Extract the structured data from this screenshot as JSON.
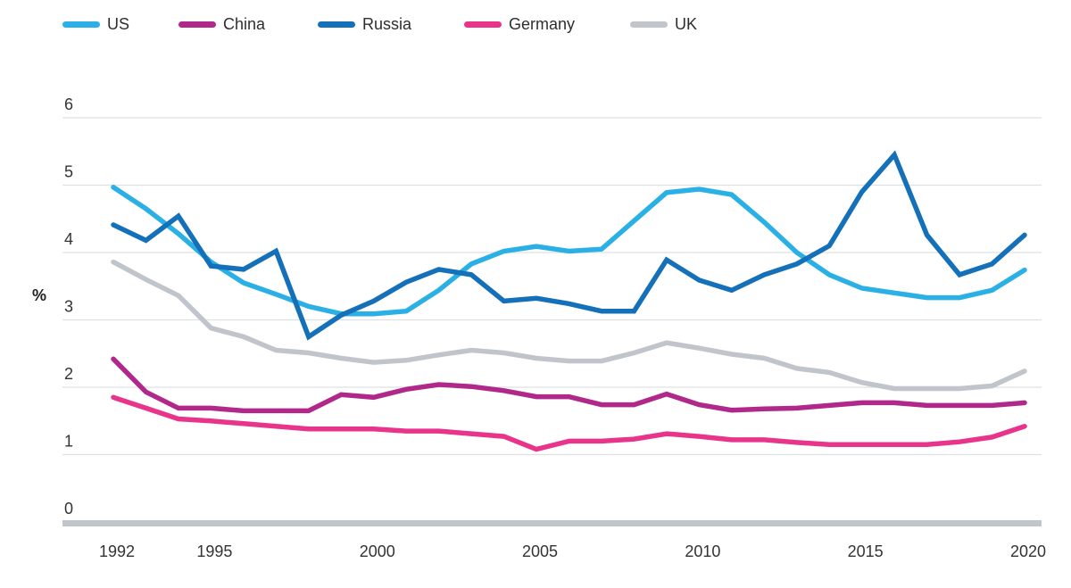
{
  "chart_data": {
    "type": "line",
    "title": "",
    "xlabel": "",
    "ylabel": "%",
    "ylim": [
      0,
      6
    ],
    "xlim": [
      1992,
      2020
    ],
    "grid": true,
    "legend_position": "top-left",
    "y_ticks": [
      "0",
      "1",
      "2",
      "3",
      "4",
      "5",
      "6"
    ],
    "x_ticks": [
      "1992",
      "1995",
      "2000",
      "2005",
      "2010",
      "2015",
      "2020"
    ],
    "x": [
      1992,
      1993,
      1994,
      1995,
      1996,
      1997,
      1998,
      1999,
      2000,
      2001,
      2002,
      2003,
      2004,
      2005,
      2006,
      2007,
      2008,
      2009,
      2010,
      2011,
      2012,
      2013,
      2014,
      2015,
      2016,
      2017,
      2018,
      2019,
      2020
    ],
    "series": [
      {
        "name": "US",
        "color": "#2bb0e6",
        "values": [
          4.97,
          4.65,
          4.28,
          3.86,
          3.55,
          3.38,
          3.2,
          3.09,
          3.09,
          3.13,
          3.44,
          3.83,
          4.02,
          4.09,
          4.02,
          4.05,
          4.47,
          4.89,
          4.94,
          4.86,
          4.45,
          4.0,
          3.67,
          3.47,
          3.4,
          3.33,
          3.33,
          3.44,
          3.74
        ]
      },
      {
        "name": "China",
        "color": "#b0288a",
        "values": [
          2.42,
          1.93,
          1.69,
          1.69,
          1.65,
          1.65,
          1.65,
          1.89,
          1.85,
          1.97,
          2.04,
          2.01,
          1.95,
          1.86,
          1.86,
          1.74,
          1.74,
          1.9,
          1.74,
          1.66,
          1.68,
          1.69,
          1.73,
          1.77,
          1.77,
          1.73,
          1.73,
          1.73,
          1.77
        ]
      },
      {
        "name": "Russia",
        "color": "#1470b8",
        "values": [
          4.41,
          4.18,
          4.54,
          3.8,
          3.75,
          4.02,
          2.75,
          3.07,
          3.28,
          3.56,
          3.75,
          3.67,
          3.28,
          3.32,
          3.24,
          3.13,
          3.13,
          3.89,
          3.59,
          3.44,
          3.67,
          3.83,
          4.1,
          4.9,
          5.45,
          4.26,
          3.67,
          3.83,
          4.26
        ]
      },
      {
        "name": "Germany",
        "color": "#e8348a",
        "values": [
          1.85,
          1.69,
          1.53,
          1.5,
          1.46,
          1.42,
          1.38,
          1.38,
          1.38,
          1.35,
          1.35,
          1.31,
          1.27,
          1.08,
          1.2,
          1.2,
          1.23,
          1.31,
          1.27,
          1.22,
          1.22,
          1.18,
          1.15,
          1.15,
          1.15,
          1.15,
          1.19,
          1.26,
          1.42
        ]
      },
      {
        "name": "UK",
        "color": "#c0c5cb",
        "values": [
          3.86,
          3.6,
          3.36,
          2.88,
          2.75,
          2.55,
          2.51,
          2.43,
          2.37,
          2.4,
          2.48,
          2.55,
          2.51,
          2.43,
          2.39,
          2.39,
          2.51,
          2.66,
          2.58,
          2.49,
          2.43,
          2.28,
          2.22,
          2.07,
          1.98,
          1.98,
          1.98,
          2.02,
          2.24
        ]
      }
    ]
  },
  "legend": {
    "items": [
      {
        "label": "US",
        "color": "#2bb0e6"
      },
      {
        "label": "China",
        "color": "#b0288a"
      },
      {
        "label": "Russia",
        "color": "#1470b8"
      },
      {
        "label": "Germany",
        "color": "#e8348a"
      },
      {
        "label": "UK",
        "color": "#c0c5cb"
      }
    ]
  },
  "colors": {
    "gridline": "#dde0e4",
    "baseline": "#c0c5cb"
  }
}
